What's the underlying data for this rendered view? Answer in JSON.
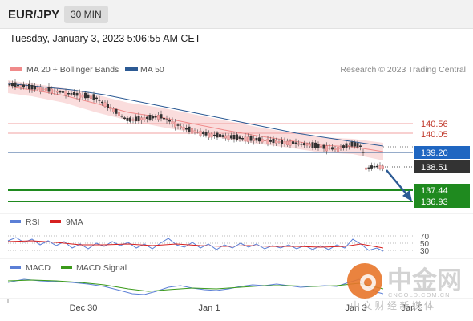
{
  "header": {
    "pair": "EUR/JPY",
    "timeframe": "30 MIN",
    "timestamp": "Tuesday, January 3, 2023 5:06:55 AM CET"
  },
  "main_chart": {
    "legend": [
      {
        "label": "MA 20 + Bollinger Bands",
        "color": "#f08a8a"
      },
      {
        "label": "MA 50",
        "color": "#2c5a94"
      }
    ],
    "credit": "Research © 2023 Trading Central",
    "levels": [
      {
        "label": "140.56",
        "value": 140.56,
        "kind": "resistance"
      },
      {
        "label": "140.05",
        "value": 140.05,
        "kind": "resistance"
      },
      {
        "label": "139.20",
        "value": 139.2,
        "kind": "pivot"
      },
      {
        "label": "138.51",
        "value": 138.51,
        "kind": "last"
      },
      {
        "label": "137.44",
        "value": 137.44,
        "kind": "target"
      },
      {
        "label": "136.93",
        "value": 136.93,
        "kind": "target"
      }
    ]
  },
  "rsi_panel": {
    "legend": [
      {
        "label": "RSI",
        "color": "#5b7fd6"
      },
      {
        "label": "9MA",
        "color": "#d62020"
      }
    ],
    "levels": [
      "70",
      "50",
      "30"
    ]
  },
  "macd_panel": {
    "legend": [
      {
        "label": "MACD",
        "color": "#5b7fd6"
      },
      {
        "label": "MACD Signal",
        "color": "#3a9a1a"
      }
    ]
  },
  "x_axis": {
    "labels": [
      "Dec 30",
      "Jan 1",
      "Jan 3",
      "Jan 5"
    ]
  },
  "watermark": {
    "name": "中金网",
    "site": "CNGOLD.COM.CN",
    "tagline": "中 文 财 经 新 媒 体"
  },
  "colors": {
    "up": "#f4a9a9",
    "down": "#333333",
    "ma50": "#2c5a94",
    "target": "#1f8a1f",
    "arrow": "#2c5a94"
  }
}
